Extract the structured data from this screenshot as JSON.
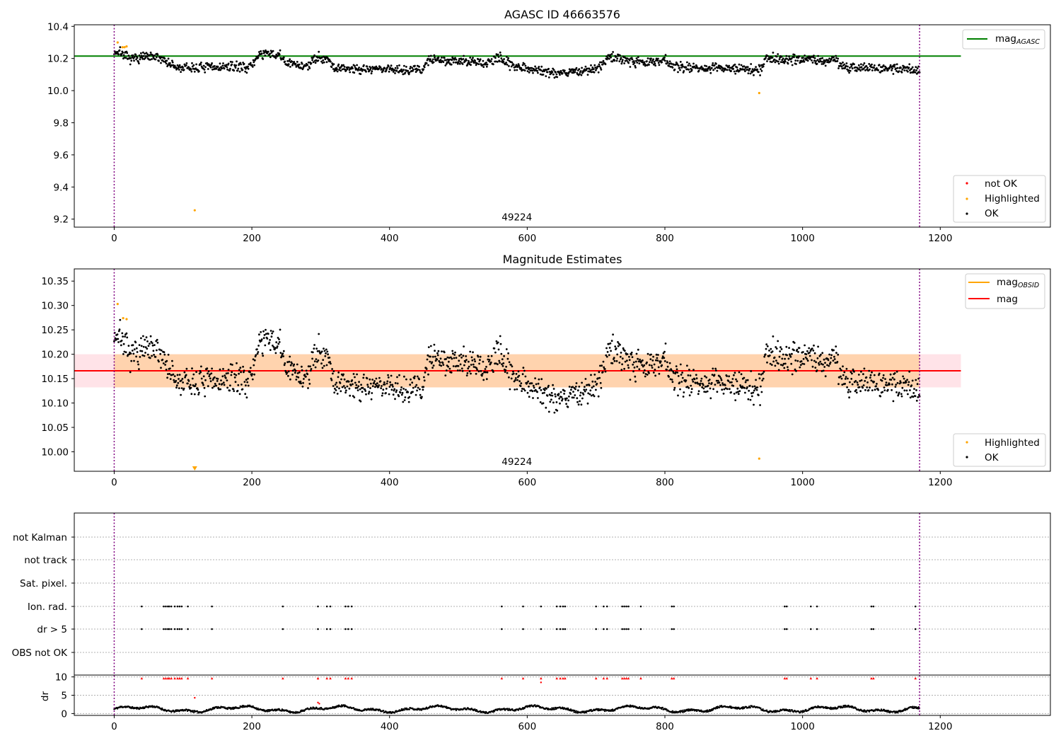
{
  "chart_data": [
    {
      "type": "scatter",
      "title": "AGASC ID 46663576",
      "xlim": [
        -58,
        1360
      ],
      "ylim": [
        9.15,
        10.41
      ],
      "xticks": [
        0,
        200,
        400,
        600,
        800,
        1000,
        1200
      ],
      "yticks": [
        9.2,
        9.4,
        9.6,
        9.8,
        10.0,
        10.2,
        10.4
      ],
      "ytick_decimals": 1,
      "vlines": [
        0,
        1170
      ],
      "hline": {
        "name": "mag_AGASC",
        "value": 10.215,
        "x0": -58,
        "x1": 1230,
        "color": "#008000"
      },
      "annotation": {
        "text": "49224",
        "x": 585,
        "y": 9.2
      },
      "legend_lines": [
        {
          "base": "mag",
          "sub": "AGASC",
          "color": "#008000"
        }
      ],
      "legend_points": [
        {
          "label": "not OK",
          "color": "#ff0000"
        },
        {
          "label": "Highlighted",
          "color": "#ffa500"
        },
        {
          "label": "OK",
          "color": "#000000"
        }
      ],
      "highlighted": [
        [
          5,
          10.3
        ],
        [
          12,
          10.27
        ],
        [
          15,
          10.27
        ],
        [
          18,
          10.275
        ],
        [
          117,
          9.255
        ],
        [
          937,
          9.985
        ]
      ],
      "ok_noise": 0.03
    },
    {
      "type": "scatter",
      "title": "Magnitude Estimates",
      "xlim": [
        -58,
        1360
      ],
      "ylim": [
        9.96,
        10.375
      ],
      "xticks": [
        0,
        200,
        400,
        600,
        800,
        1000,
        1200
      ],
      "yticks": [
        10.0,
        10.05,
        10.1,
        10.15,
        10.2,
        10.25,
        10.3,
        10.35
      ],
      "ytick_decimals": 2,
      "vlines": [
        0,
        1170
      ],
      "mag_line": {
        "name": "mag",
        "value": 10.166,
        "x0": -58,
        "x1": 1230,
        "color": "#ff0000"
      },
      "mag_band": {
        "lo": 10.132,
        "hi": 10.2,
        "x0": -58,
        "x1": 1230,
        "color": "#ffc0cb"
      },
      "obsid_band": {
        "lo": 10.132,
        "hi": 10.2,
        "x0": 0,
        "x1": 1170,
        "color": "#ffa500"
      },
      "annotation": {
        "text": "49224",
        "x": 585,
        "y": 9.98
      },
      "legend_lines": [
        {
          "base": "mag",
          "sub": "OBSID",
          "color": "#ffa500"
        },
        {
          "base": "mag",
          "sub": "",
          "color": "#ff0000"
        }
      ],
      "legend_points": [
        {
          "label": "Highlighted",
          "color": "#ffa500"
        },
        {
          "label": "OK",
          "color": "#000000"
        }
      ],
      "highlighted": [
        [
          5,
          10.303
        ],
        [
          13,
          10.274
        ],
        [
          18,
          10.272
        ],
        [
          937,
          9.986
        ]
      ],
      "ok_noise": 0.03
    },
    {
      "type": "scatter",
      "xlim": [
        -58,
        1360
      ],
      "xticks": [
        0,
        200,
        400,
        600,
        800,
        1000,
        1200
      ],
      "vlines": [
        0,
        1170
      ],
      "flag_labels": [
        "not Kalman",
        "not track",
        "Sat. pixel.",
        "Ion. rad.",
        "dr > 5",
        "OBS not OK"
      ],
      "flag_x": [
        40,
        72,
        75,
        78,
        80,
        83,
        88,
        92,
        95,
        98,
        107,
        142,
        245,
        296,
        309,
        314,
        336,
        340,
        345,
        563,
        594,
        620,
        643,
        648,
        652,
        655,
        700,
        711,
        716,
        738,
        741,
        744,
        747,
        765,
        810,
        813,
        974,
        977,
        1012,
        1021,
        1100,
        1103,
        1164
      ],
      "dr_ylabel": "dr",
      "dr_ylim": [
        -0.5,
        10.5
      ],
      "dr_yticks": [
        0,
        5,
        10
      ],
      "dr_outliers": [
        [
          117,
          4.3
        ],
        [
          296,
          3.0
        ],
        [
          298,
          2.7
        ],
        [
          620,
          8.5
        ],
        [
          296,
          9.5
        ]
      ]
    }
  ]
}
